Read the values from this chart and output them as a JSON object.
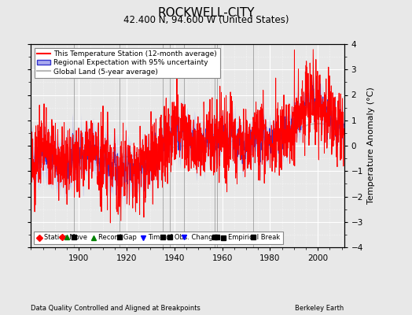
{
  "title": "ROCKWELL-CITY",
  "subtitle": "42.400 N, 94.600 W (United States)",
  "ylabel": "Temperature Anomaly (°C)",
  "xlabel_left": "Data Quality Controlled and Aligned at Breakpoints",
  "xlabel_right": "Berkeley Earth",
  "ylim": [
    -4,
    4
  ],
  "xlim": [
    1880,
    2011
  ],
  "xticks": [
    1900,
    1920,
    1940,
    1960,
    1980,
    2000
  ],
  "yticks": [
    -4,
    -3,
    -2,
    -1,
    0,
    1,
    2,
    3,
    4
  ],
  "background_color": "#e8e8e8",
  "plot_bg_color": "#e8e8e8",
  "grid_color": "#ffffff",
  "station_color": "#ff0000",
  "regional_color": "#3333cc",
  "regional_fill": "#aaaaee",
  "global_color": "#b8b8b8",
  "legend_items": [
    "This Temperature Station (12-month average)",
    "Regional Expectation with 95% uncertainty",
    "Global Land (5-year average)"
  ],
  "marker_events": {
    "station_move": [
      1893
    ],
    "record_gap": [
      1895
    ],
    "empirical_break": [
      1898,
      1917,
      1935,
      1938,
      1957,
      1958,
      1973
    ],
    "time_of_obs": [
      1944
    ]
  },
  "seed": 42
}
